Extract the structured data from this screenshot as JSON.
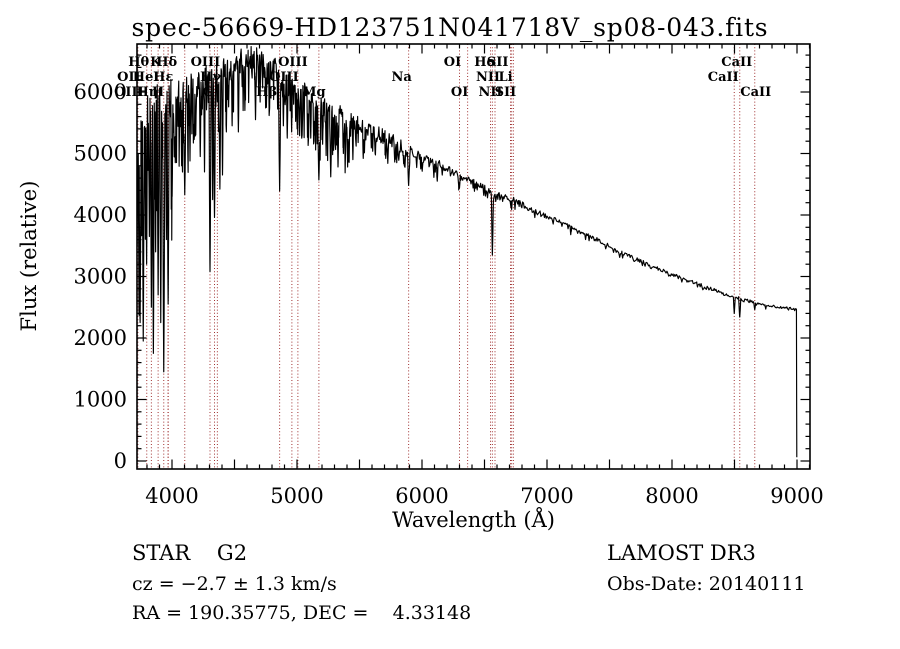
{
  "title": "spec-56669-HD123751N041718V_sp08-043.fits",
  "annotations": {
    "class_line": "STAR    G2",
    "cz_line": "cz = −2.7 ± 1.3 km/s",
    "radec_line": "RA = 190.35775, DEC =    4.33148",
    "survey": "LAMOST DR3",
    "obs_date": "Obs-Date: 20140111"
  },
  "chart_data": {
    "type": "line",
    "title": "spec-56669-HD123751N041718V_sp08-043.fits",
    "xlabel": "Wavelength (Å)",
    "ylabel": "Flux (relative)",
    "xlim": [
      3720,
      9104
    ],
    "ylim": [
      -130,
      6780
    ],
    "grid": false,
    "x_ticks_labeled": [
      4000,
      5000,
      6000,
      7000,
      8000,
      9000
    ],
    "x_tick_major_step": 500,
    "x_tick_minor_step": 100,
    "y_ticks_labeled": [
      0,
      1000,
      2000,
      3000,
      4000,
      5000,
      6000
    ],
    "y_tick_minor_step": 200,
    "spectrum_color": "#000000",
    "marker_color": "#a03030",
    "background": "#ffffff",
    "line_markers": [
      {
        "l": 3798,
        "t": "Hθ",
        "r": 1,
        "dx": -8
      },
      {
        "l": 3934,
        "t": "K",
        "r": 1,
        "dx": -8
      },
      {
        "l": 4102,
        "t": "Hδ",
        "r": 1,
        "dx": -18
      },
      {
        "l": 4363,
        "t": "OIII",
        "r": 1,
        "dx": -12
      },
      {
        "l": 5007,
        "t": "OIII",
        "r": 1,
        "dx": -5
      },
      {
        "l": 6300,
        "t": "OI",
        "r": 1,
        "dx": -7
      },
      {
        "l": 6563,
        "t": "Hα",
        "r": 1,
        "dx": -7
      },
      {
        "l": 6717,
        "t": "SII",
        "r": 1,
        "dx": -14
      },
      {
        "l": 8542,
        "t": "CaII",
        "r": 1,
        "dx": -3
      },
      {
        "l": 3727,
        "t": "OII",
        "r": 2,
        "dx": -9
      },
      {
        "l": 3889,
        "t": "HeI",
        "r": 2,
        "dx": -12
      },
      {
        "l": 3970,
        "t": "Hε",
        "r": 2,
        "dx": -5
      },
      {
        "l": 4340,
        "t": "Hγ",
        "r": 2,
        "dx": -4
      },
      {
        "l": 4959,
        "t": "OIII",
        "r": 2,
        "dx": -8
      },
      {
        "l": 5893,
        "t": "Na",
        "r": 2,
        "dx": -7
      },
      {
        "l": 6584,
        "t": "NII",
        "r": 2,
        "dx": -7
      },
      {
        "l": 6708,
        "t": "Li",
        "r": 2,
        "dx": -5
      },
      {
        "l": 8498,
        "t": "CaII",
        "r": 2,
        "dx": -11
      },
      {
        "l": 3727,
        "t": "OIII",
        "r": 3,
        "dx": -9
      },
      {
        "l": 3835,
        "t": "Hη",
        "r": 3,
        "dx": -4
      },
      {
        "l": 3968,
        "t": "H",
        "r": 3,
        "dx": -10
      },
      {
        "l": 4304,
        "t": "G",
        "r": 3,
        "dx": -2
      },
      {
        "l": 4861,
        "t": "Hβ",
        "r": 3,
        "dx": -13
      },
      {
        "l": 5175,
        "t": "Mg",
        "r": 3,
        "dx": -5
      },
      {
        "l": 6365,
        "t": "OI",
        "r": 3,
        "dx": -8
      },
      {
        "l": 6548,
        "t": "NII",
        "r": 3,
        "dx": 0
      },
      {
        "l": 6731,
        "t": "SII",
        "r": 3,
        "dx": -8
      },
      {
        "l": 8662,
        "t": "CaII",
        "r": 3,
        "dx": 1
      }
    ],
    "continuum": [
      [
        3720,
        4650
      ],
      [
        3740,
        5150
      ],
      [
        3760,
        5400
      ],
      [
        3785,
        5650
      ],
      [
        3810,
        5750
      ],
      [
        3850,
        5850
      ],
      [
        3900,
        5900
      ],
      [
        3950,
        5900
      ],
      [
        4000,
        5950
      ],
      [
        4050,
        6000
      ],
      [
        4100,
        6050
      ],
      [
        4150,
        6100
      ],
      [
        4200,
        6150
      ],
      [
        4250,
        6200
      ],
      [
        4300,
        6260
      ],
      [
        4350,
        6310
      ],
      [
        4400,
        6360
      ],
      [
        4450,
        6420
      ],
      [
        4500,
        6480
      ],
      [
        4560,
        6540
      ],
      [
        4620,
        6560
      ],
      [
        4680,
        6530
      ],
      [
        4740,
        6470
      ],
      [
        4800,
        6400
      ],
      [
        4860,
        6300
      ],
      [
        4920,
        6180
      ],
      [
        4980,
        6080
      ],
      [
        5040,
        6000
      ],
      [
        5100,
        5950
      ],
      [
        5160,
        5850
      ],
      [
        5220,
        5760
      ],
      [
        5280,
        5700
      ],
      [
        5340,
        5640
      ],
      [
        5400,
        5580
      ],
      [
        5460,
        5520
      ],
      [
        5520,
        5470
      ],
      [
        5580,
        5410
      ],
      [
        5640,
        5350
      ],
      [
        5700,
        5290
      ],
      [
        5760,
        5230
      ],
      [
        5820,
        5150
      ],
      [
        5880,
        5080
      ],
      [
        5940,
        5010
      ],
      [
        6000,
        4950
      ],
      [
        6060,
        4890
      ],
      [
        6120,
        4840
      ],
      [
        6180,
        4780
      ],
      [
        6240,
        4710
      ],
      [
        6300,
        4650
      ],
      [
        6360,
        4580
      ],
      [
        6420,
        4530
      ],
      [
        6480,
        4470
      ],
      [
        6540,
        4400
      ],
      [
        6600,
        4330
      ],
      [
        6660,
        4300
      ],
      [
        6720,
        4260
      ],
      [
        6780,
        4200
      ],
      [
        6840,
        4140
      ],
      [
        6900,
        4090
      ],
      [
        6960,
        4030
      ],
      [
        7020,
        3980
      ],
      [
        7100,
        3900
      ],
      [
        7180,
        3820
      ],
      [
        7260,
        3740
      ],
      [
        7340,
        3660
      ],
      [
        7420,
        3580
      ],
      [
        7500,
        3490
      ],
      [
        7580,
        3410
      ],
      [
        7660,
        3330
      ],
      [
        7740,
        3260
      ],
      [
        7820,
        3190
      ],
      [
        7900,
        3120
      ],
      [
        7980,
        3050
      ],
      [
        8060,
        2990
      ],
      [
        8140,
        2930
      ],
      [
        8220,
        2870
      ],
      [
        8300,
        2810
      ],
      [
        8380,
        2760
      ],
      [
        8460,
        2700
      ],
      [
        8540,
        2650
      ],
      [
        8620,
        2600
      ],
      [
        8700,
        2560
      ],
      [
        8780,
        2530
      ],
      [
        8860,
        2505
      ],
      [
        8940,
        2485
      ],
      [
        8990,
        2475
      ]
    ],
    "absorption_dips": [
      [
        3745,
        2250,
        7
      ],
      [
        3770,
        1950,
        7
      ],
      [
        3797,
        3200,
        6
      ],
      [
        3819,
        3650,
        5
      ],
      [
        3835,
        2500,
        7
      ],
      [
        3851,
        1750,
        7
      ],
      [
        3869,
        3400,
        5
      ],
      [
        3889,
        2700,
        7
      ],
      [
        3910,
        2250,
        7
      ],
      [
        3934,
        1450,
        9
      ],
      [
        3955,
        3600,
        5
      ],
      [
        3969,
        2550,
        8
      ],
      [
        4001,
        4300,
        6
      ],
      [
        4026,
        4850,
        5
      ],
      [
        4077,
        4800,
        5
      ],
      [
        4102,
        4330,
        9
      ],
      [
        4144,
        5050,
        6
      ],
      [
        4190,
        5300,
        5
      ],
      [
        4226,
        4950,
        6
      ],
      [
        4260,
        4700,
        5
      ],
      [
        4304,
        3080,
        8
      ],
      [
        4325,
        4250,
        5
      ],
      [
        4340,
        3960,
        8
      ],
      [
        4383,
        4420,
        7
      ],
      [
        4404,
        4650,
        6
      ],
      [
        4435,
        5350,
        5
      ],
      [
        4481,
        5450,
        5
      ],
      [
        4531,
        5350,
        6
      ],
      [
        4583,
        5700,
        5
      ],
      [
        4668,
        5550,
        6
      ],
      [
        4755,
        5750,
        5
      ],
      [
        4861,
        4390,
        9
      ],
      [
        4891,
        5450,
        5
      ],
      [
        4922,
        5250,
        6
      ],
      [
        4957,
        5350,
        5
      ],
      [
        5001,
        5400,
        5
      ],
      [
        5041,
        5300,
        6
      ],
      [
        5084,
        5450,
        5
      ],
      [
        5110,
        5250,
        5
      ],
      [
        5142,
        5300,
        5
      ],
      [
        5175,
        4570,
        10
      ],
      [
        5205,
        5150,
        5
      ],
      [
        5270,
        4620,
        8
      ],
      [
        5328,
        4780,
        6
      ],
      [
        5371,
        5000,
        5
      ],
      [
        5405,
        4780,
        6
      ],
      [
        5447,
        4900,
        5
      ],
      [
        5530,
        4920,
        6
      ],
      [
        5625,
        5000,
        5
      ],
      [
        5710,
        4920,
        6
      ],
      [
        5782,
        4860,
        6
      ],
      [
        5853,
        4880,
        5
      ],
      [
        5893,
        4480,
        9
      ],
      [
        5990,
        4750,
        5
      ],
      [
        6122,
        4550,
        6
      ],
      [
        6162,
        4650,
        5
      ],
      [
        6300,
        4440,
        6
      ],
      [
        6494,
        4320,
        5
      ],
      [
        6563,
        3350,
        8
      ],
      [
        6717,
        4090,
        5
      ],
      [
        7190,
        3680,
        5
      ],
      [
        7605,
        3300,
        6
      ],
      [
        8204,
        2830,
        5
      ],
      [
        8498,
        2400,
        7
      ],
      [
        8542,
        2340,
        8
      ],
      [
        8662,
        2460,
        7
      ],
      [
        8750,
        2470,
        5
      ]
    ],
    "noise_regions": [
      [
        3720,
        3800,
        2600,
        320
      ],
      [
        3800,
        4000,
        2200,
        300
      ],
      [
        4000,
        4260,
        1250,
        230
      ],
      [
        4260,
        4520,
        950,
        210
      ],
      [
        4520,
        5000,
        750,
        190
      ],
      [
        5000,
        5460,
        900,
        170
      ],
      [
        5460,
        5900,
        520,
        115
      ],
      [
        5900,
        6300,
        230,
        75
      ],
      [
        6300,
        7000,
        130,
        45
      ],
      [
        7000,
        7800,
        75,
        32
      ],
      [
        7800,
        8500,
        55,
        26
      ],
      [
        8500,
        8996,
        48,
        22
      ]
    ],
    "cutoff": {
      "lambda": 8996,
      "flux_end": 60
    }
  }
}
